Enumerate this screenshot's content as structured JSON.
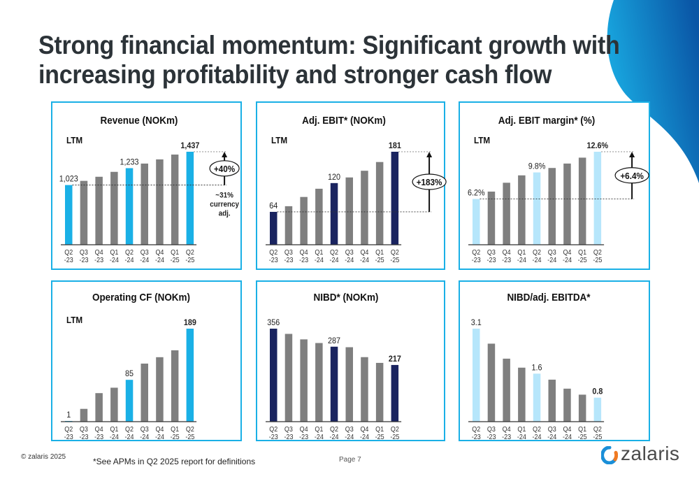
{
  "title_lines": [
    "Strong financial momentum: Significant growth with",
    "increasing profitability and stronger cash flow"
  ],
  "colors": {
    "accent_blue": "#1ab0e6",
    "dark_navy": "#1a2460",
    "light_blue": "#b6e6fb",
    "gray_bar": "#7f7f7f",
    "title_text": "#2c3338"
  },
  "footer": {
    "copyright": "© zalaris 2025",
    "note": "*See APMs in Q2 2025 report for definitions",
    "page": "Page 7",
    "logo_text": "zalaris",
    "logo_icon": "zalaris-swirl-logo-icon"
  },
  "chart_data": [
    {
      "id": "revenue",
      "type": "bar",
      "title": "Revenue (NOKm)",
      "subtitle": "LTM",
      "categories": [
        "Q2\n-23",
        "Q3\n-23",
        "Q4\n-23",
        "Q1\n-24",
        "Q2\n-24",
        "Q3\n-24",
        "Q4\n-24",
        "Q1\n-25",
        "Q2\n-25"
      ],
      "values": [
        1023,
        1075,
        1126,
        1187,
        1233,
        1290,
        1342,
        1402,
        1437
      ],
      "highlight_indices": [
        0,
        4,
        8
      ],
      "highlight_color": "#1ab0e6",
      "data_labels": {
        "0": "1,023",
        "4": "1,233",
        "8": "1,437"
      },
      "bold_labels": [
        8
      ],
      "ylim": [
        281,
        1437
      ],
      "annotation": {
        "label": "+40%",
        "note": [
          "~31%",
          "currency",
          "adj."
        ],
        "from_index": 0,
        "to_index": 8
      }
    },
    {
      "id": "adj-ebit",
      "type": "bar",
      "title": "Adj. EBIT* (NOKm)",
      "subtitle": "LTM",
      "categories": [
        "Q2\n-23",
        "Q3\n-23",
        "Q4\n-23",
        "Q1\n-24",
        "Q2\n-24",
        "Q3\n-24",
        "Q4\n-24",
        "Q1\n-25",
        "Q2\n-25"
      ],
      "values": [
        64,
        75,
        93,
        109,
        120,
        131,
        144,
        161,
        181
      ],
      "highlight_indices": [
        0,
        4,
        8
      ],
      "highlight_color": "#1a2460",
      "data_labels": {
        "0": "64",
        "4": "120",
        "8": "181"
      },
      "bold_labels": [
        8
      ],
      "ylim": [
        0,
        181
      ],
      "annotation": {
        "label": "+183%",
        "note": [],
        "from_index": 0,
        "to_index": 8
      }
    },
    {
      "id": "adj-ebit-margin",
      "type": "bar",
      "title": "Adj. EBIT margin* (%)",
      "subtitle": "LTM",
      "categories": [
        "Q2\n-23",
        "Q3\n-23",
        "Q4\n-23",
        "Q1\n-24",
        "Q2\n-24",
        "Q3\n-24",
        "Q4\n-24",
        "Q1\n-25",
        "Q2\n-25"
      ],
      "values": [
        6.2,
        7.2,
        8.4,
        9.4,
        9.8,
        10.4,
        11.0,
        11.8,
        12.6
      ],
      "highlight_indices": [
        0,
        4,
        8
      ],
      "highlight_color": "#b6e6fb",
      "data_labels": {
        "0": "6.2%",
        "4": "9.8%",
        "8": "12.6%"
      },
      "bold_labels": [
        8
      ],
      "ylim": [
        0,
        12.6
      ],
      "annotation": {
        "label": "+6.4%",
        "note": [],
        "from_index": 0,
        "to_index": 8
      }
    },
    {
      "id": "operating-cf",
      "type": "bar",
      "title": "Operating CF (NOKm)",
      "subtitle": "LTM",
      "categories": [
        "Q2\n-23",
        "Q3\n-23",
        "Q4\n-23",
        "Q1\n-24",
        "Q2\n-24",
        "Q3\n-24",
        "Q4\n-24",
        "Q1\n-25",
        "Q2\n-25"
      ],
      "values": [
        1,
        26,
        58,
        69,
        85,
        118,
        131,
        145,
        189
      ],
      "highlight_indices": [
        0,
        4,
        8
      ],
      "highlight_color": "#1ab0e6",
      "data_labels": {
        "0": "1",
        "4": "85",
        "8": "189"
      },
      "bold_labels": [
        8
      ],
      "ylim": [
        0,
        189
      ],
      "annotation": null
    },
    {
      "id": "nibd",
      "type": "bar",
      "title": "NIBD* (NOKm)",
      "subtitle": "",
      "categories": [
        "Q2\n-23",
        "Q3\n-23",
        "Q4\n-23",
        "Q1\n-24",
        "Q2\n-24",
        "Q3\n-24",
        "Q4\n-24",
        "Q1\n-25",
        "Q2\n-25"
      ],
      "values": [
        356,
        336,
        315,
        301,
        287,
        285,
        247,
        225,
        217
      ],
      "highlight_indices": [
        0,
        4,
        8
      ],
      "highlight_color": "#1a2460",
      "data_labels": {
        "0": "356",
        "4": "287",
        "8": "217"
      },
      "bold_labels": [
        8
      ],
      "ylim": [
        0,
        356
      ],
      "annotation": null
    },
    {
      "id": "nibd-ebitda",
      "type": "bar",
      "title": "NIBD/adj. EBITDA*",
      "subtitle": "",
      "categories": [
        "Q2\n-23",
        "Q3\n-23",
        "Q4\n-23",
        "Q1\n-24",
        "Q2\n-24",
        "Q3\n-24",
        "Q4\n-24",
        "Q1\n-25",
        "Q2\n-25"
      ],
      "values": [
        3.1,
        2.6,
        2.1,
        1.8,
        1.6,
        1.4,
        1.1,
        0.9,
        0.8
      ],
      "highlight_indices": [
        0,
        4,
        8
      ],
      "highlight_color": "#b6e6fb",
      "data_labels": {
        "0": "3.1",
        "4": "1.6",
        "8": "0.8"
      },
      "bold_labels": [
        8
      ],
      "ylim": [
        0,
        3.1
      ],
      "annotation": null
    }
  ]
}
